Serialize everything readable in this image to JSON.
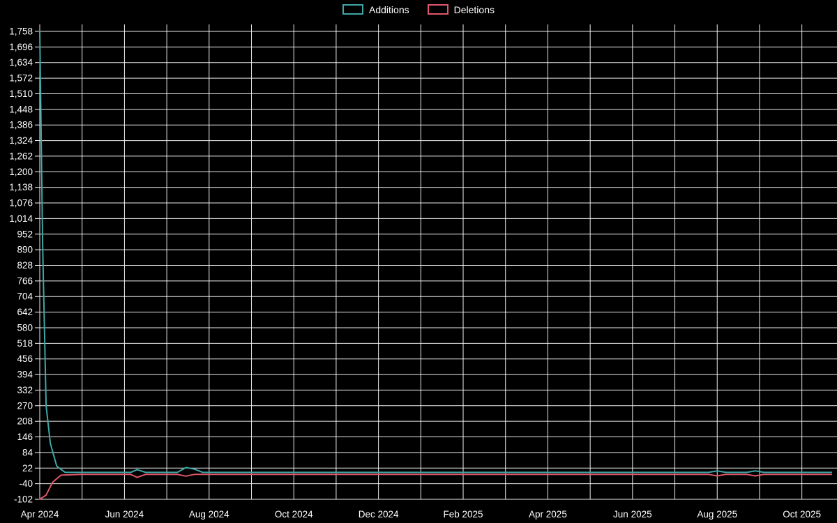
{
  "chart_data": {
    "type": "line",
    "title": "",
    "background": "#000000",
    "grid_color": "#ffffff",
    "text_color": "#ffffff",
    "ylim": [
      -102,
      1758
    ],
    "y_ticks": [
      1758,
      1696,
      1634,
      1572,
      1510,
      1448,
      1386,
      1324,
      1262,
      1200,
      1138,
      1076,
      1014,
      952,
      890,
      828,
      766,
      704,
      642,
      580,
      518,
      456,
      394,
      332,
      270,
      208,
      146,
      84,
      22,
      -40,
      -102
    ],
    "x_tick_labels": [
      "Apr 2024",
      "Jun 2024",
      "Aug 2024",
      "Oct 2024",
      "Dec 2024",
      "Feb 2025",
      "Apr 2025",
      "Jun 2025",
      "Aug 2025",
      "Oct 2025"
    ],
    "x_tick_label_interval_months": 2,
    "x_range_months": [
      0,
      18.78
    ],
    "legend_position": "top-center",
    "grid": true,
    "series": [
      {
        "name": "Additions",
        "color": "#3fa7a7",
        "points": [
          [
            0,
            1758
          ],
          [
            0.07,
            900
          ],
          [
            0.15,
            270
          ],
          [
            0.25,
            120
          ],
          [
            0.4,
            30
          ],
          [
            0.6,
            5
          ],
          [
            1,
            5
          ],
          [
            1.5,
            5
          ],
          [
            2,
            5
          ],
          [
            2.15,
            5
          ],
          [
            2.3,
            16
          ],
          [
            2.5,
            5
          ],
          [
            3,
            5
          ],
          [
            3.25,
            5
          ],
          [
            3.45,
            24
          ],
          [
            3.65,
            18
          ],
          [
            3.85,
            5
          ],
          [
            4.5,
            5
          ],
          [
            5,
            5
          ],
          [
            6,
            5
          ],
          [
            7,
            5
          ],
          [
            8,
            5
          ],
          [
            9,
            5
          ],
          [
            10,
            5
          ],
          [
            11,
            5
          ],
          [
            12,
            5
          ],
          [
            13,
            5
          ],
          [
            14,
            5
          ],
          [
            15,
            5
          ],
          [
            15.8,
            5
          ],
          [
            16,
            11
          ],
          [
            16.2,
            5
          ],
          [
            16.7,
            5
          ],
          [
            16.9,
            11
          ],
          [
            17.1,
            5
          ],
          [
            17.5,
            5
          ],
          [
            18,
            5
          ],
          [
            18.7,
            5
          ]
        ]
      },
      {
        "name": "Deletions",
        "color": "#e0566a",
        "points": [
          [
            0,
            -102
          ],
          [
            0.15,
            -85
          ],
          [
            0.3,
            -35
          ],
          [
            0.5,
            -6
          ],
          [
            1,
            -3
          ],
          [
            2,
            -3
          ],
          [
            2.15,
            -3
          ],
          [
            2.3,
            -15
          ],
          [
            2.5,
            -3
          ],
          [
            3.25,
            -3
          ],
          [
            3.45,
            -10
          ],
          [
            3.65,
            -3
          ],
          [
            4,
            -3
          ],
          [
            5,
            -3
          ],
          [
            6,
            -3
          ],
          [
            8,
            -3
          ],
          [
            10,
            -3
          ],
          [
            12,
            -3
          ],
          [
            14,
            -3
          ],
          [
            15.8,
            -3
          ],
          [
            16,
            -9
          ],
          [
            16.2,
            -3
          ],
          [
            16.7,
            -3
          ],
          [
            16.9,
            -9
          ],
          [
            17.1,
            -3
          ],
          [
            18,
            -3
          ],
          [
            18.7,
            -3
          ]
        ]
      }
    ]
  }
}
